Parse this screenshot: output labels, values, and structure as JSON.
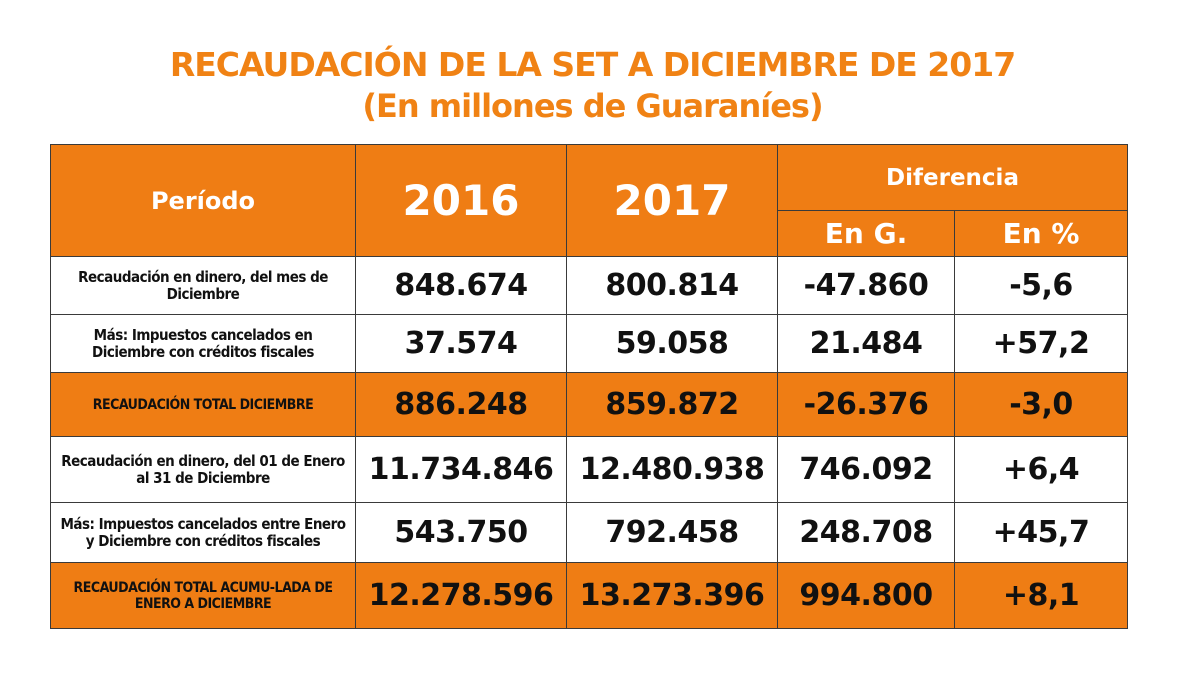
{
  "title": "RECAUDACIÓN DE LA SET A DICIEMBRE DE 2017",
  "subtitle": "(En millones de Guaraníes)",
  "colors": {
    "accent": "#ef7d14",
    "title": "#f08214"
  },
  "table": {
    "headers": {
      "period": "Período",
      "year_2016": "2016",
      "year_2017": "2017",
      "difference": "Diferencia",
      "diff_abs": "En G.",
      "diff_pct": "En %"
    },
    "rows": [
      {
        "label": "Recaudación en dinero, del mes de Diciembre",
        "v2016": "848.674",
        "v2017": "800.814",
        "diff_abs": "-47.860",
        "diff_pct": "-5,6",
        "highlight": false
      },
      {
        "label": "Más: Impuestos cancelados en Diciembre con créditos fiscales",
        "v2016": "37.574",
        "v2017": "59.058",
        "diff_abs": "21.484",
        "diff_pct": "+57,2",
        "highlight": false
      },
      {
        "label": "RECAUDACIÓN TOTAL DICIEMBRE",
        "v2016": "886.248",
        "v2017": "859.872",
        "diff_abs": "-26.376",
        "diff_pct": "-3,0",
        "highlight": true
      },
      {
        "label": "Recaudación en dinero, del 01 de Enero al 31 de Diciembre",
        "v2016": "11.734.846",
        "v2017": "12.480.938",
        "diff_abs": "746.092",
        "diff_pct": "+6,4",
        "highlight": false
      },
      {
        "label": "Más: Impuestos cancelados entre Enero y Diciembre con créditos fiscales",
        "v2016": "543.750",
        "v2017": "792.458",
        "diff_abs": "248.708",
        "diff_pct": "+45,7",
        "highlight": false
      },
      {
        "label": "RECAUDACIÓN TOTAL ACUMU-LADA DE ENERO A DICIEMBRE",
        "v2016": "12.278.596",
        "v2017": "13.273.396",
        "diff_abs": "994.800",
        "diff_pct": "+8,1",
        "highlight": true
      }
    ]
  }
}
